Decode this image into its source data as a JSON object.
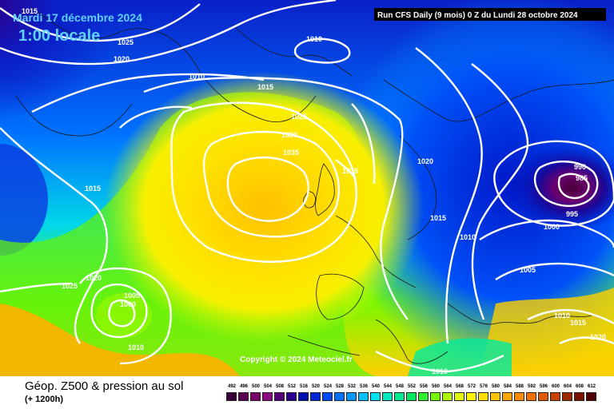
{
  "header": {
    "date": "Mardi 17 décembre 2024",
    "time": "1:00 locale",
    "run_info": "Run CFS Daily (9 mois) 0 Z du Lundi 28 octobre 2024",
    "copyright": "Copyright © 2024 Meteociel.fr"
  },
  "footer": {
    "title": "Géop. Z500 & pression au sol",
    "subtitle": "(+ 1200h)"
  },
  "isobar_labels": [
    "1015",
    "1025",
    "1020",
    "1010",
    "1010",
    "1015",
    "1025",
    "1030",
    "1035",
    "1035",
    "1020",
    "1015",
    "1010",
    "1015",
    "1025",
    "1020",
    "1005",
    "1000",
    "1010",
    "990",
    "985",
    "995",
    "1000",
    "1005",
    "1010",
    "1015",
    "1020",
    "1010"
  ],
  "legend": {
    "values": [
      "492",
      "496",
      "500",
      "504",
      "508",
      "512",
      "516",
      "520",
      "524",
      "528",
      "532",
      "536",
      "540",
      "544",
      "548",
      "552",
      "556",
      "560",
      "564",
      "568",
      "572",
      "576",
      "580",
      "584",
      "588",
      "592",
      "596",
      "600",
      "604",
      "608",
      "612"
    ],
    "colors": [
      "#3a0038",
      "#5a0050",
      "#780068",
      "#8a0880",
      "#55007a",
      "#2a0090",
      "#0010b0",
      "#0028d8",
      "#0048f8",
      "#0070ff",
      "#0098ff",
      "#00c0ff",
      "#00e0f0",
      "#00e8c0",
      "#00e890",
      "#00e860",
      "#30f030",
      "#78f800",
      "#b0f800",
      "#e0f800",
      "#fff400",
      "#ffe000",
      "#ffc400",
      "#ffa800",
      "#ff8c00",
      "#f07000",
      "#e05800",
      "#c84000",
      "#a02800",
      "#781400",
      "#500000"
    ]
  },
  "colors": {
    "ocean_deep": "#0a0f9e",
    "ridge": "#ffd000",
    "low_center": "#4a0038"
  }
}
